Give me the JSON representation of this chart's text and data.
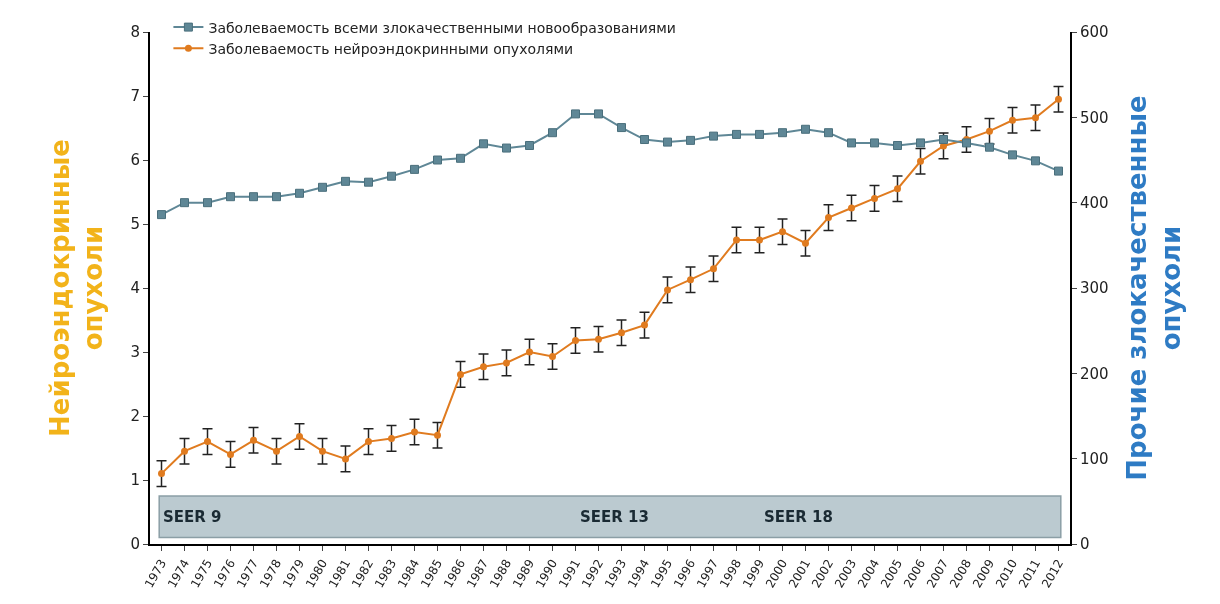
{
  "chart_data": {
    "type": "line",
    "ylabel": "Нейроэндокринные\nопухоли",
    "y2label": "Прочие злокачественные\nопухоли",
    "categories": [
      "1973",
      "1974",
      "1975",
      "1976",
      "1977",
      "1978",
      "1979",
      "1980",
      "1981",
      "1982",
      "1983",
      "1984",
      "1985",
      "1986",
      "1987",
      "1988",
      "1989",
      "1990",
      "1991",
      "1992",
      "1993",
      "1994",
      "1995",
      "1996",
      "1997",
      "1998",
      "1999",
      "2000",
      "2001",
      "2002",
      "2003",
      "2004",
      "2005",
      "2006",
      "2007",
      "2008",
      "2009",
      "2010",
      "2011",
      "2012"
    ],
    "series": [
      {
        "name": "Заболеваемость всеми злокачественными новообразованиями",
        "color": "#5f8796",
        "axis": "y2",
        "marker": "square",
        "values": [
          386,
          400,
          400,
          407,
          407,
          407,
          411,
          418,
          425,
          424,
          431,
          439,
          450,
          452,
          469,
          464,
          467,
          482,
          504,
          504,
          488,
          474,
          471,
          473,
          478,
          480,
          480,
          482,
          486,
          482,
          470,
          470,
          467,
          470,
          474,
          470,
          465,
          456,
          449,
          437
        ]
      },
      {
        "name": "Заболеваемость нейроэндокринными опухолями",
        "color": "#e07b1f",
        "marker": "circle",
        "values": [
          1.1,
          1.45,
          1.6,
          1.4,
          1.62,
          1.45,
          1.68,
          1.45,
          1.33,
          1.6,
          1.65,
          1.75,
          1.7,
          2.65,
          2.77,
          2.83,
          3.0,
          2.93,
          3.18,
          3.2,
          3.3,
          3.42,
          3.97,
          4.13,
          4.3,
          4.75,
          4.75,
          4.88,
          4.7,
          5.1,
          5.25,
          5.4,
          5.55,
          5.98,
          6.22,
          6.32,
          6.45,
          6.62,
          6.66,
          6.95
        ],
        "errors": [
          0.2,
          0.2,
          0.2,
          0.2,
          0.2,
          0.2,
          0.2,
          0.2,
          0.2,
          0.2,
          0.2,
          0.2,
          0.2,
          0.2,
          0.2,
          0.2,
          0.2,
          0.2,
          0.2,
          0.2,
          0.2,
          0.2,
          0.2,
          0.2,
          0.2,
          0.2,
          0.2,
          0.2,
          0.2,
          0.2,
          0.2,
          0.2,
          0.2,
          0.2,
          0.2,
          0.2,
          0.2,
          0.2,
          0.2,
          0.2
        ]
      }
    ],
    "ylim": [
      0,
      8
    ],
    "yticks": [
      0,
      1,
      2,
      3,
      4,
      5,
      6,
      7,
      8
    ],
    "y2lim": [
      0,
      600
    ],
    "y2ticks": [
      0,
      100,
      200,
      300,
      400,
      500,
      600
    ],
    "bands": [
      {
        "axis": "y",
        "from": 0.1,
        "to": 0.75,
        "color": "#8fa7b2"
      }
    ],
    "annotations": [
      "SEER 9",
      "SEER 13",
      "SEER 18"
    ],
    "legend": "top left",
    "grid": false,
    "line_style": "solid"
  }
}
